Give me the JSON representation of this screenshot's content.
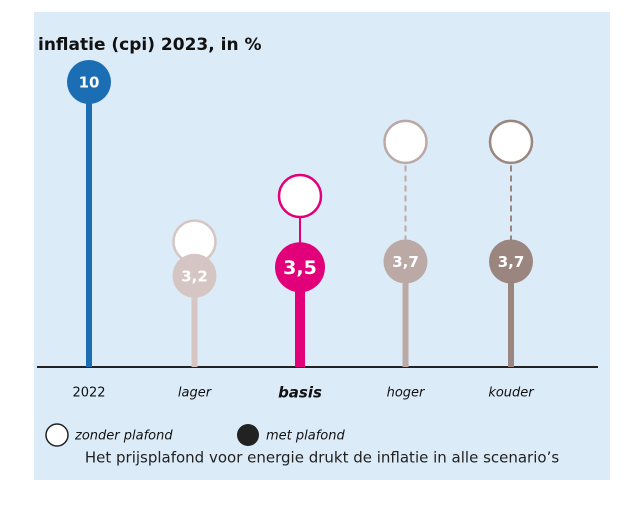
{
  "chart_data": {
    "type": "lollipop",
    "title": "inflatie (cpi) 2023, in %",
    "categories": [
      "2022",
      "lager",
      "basis",
      "hoger",
      "kouder"
    ],
    "colors": [
      "#1b6db4",
      "#d6c6c3",
      "#e2007a",
      "#bba9a5",
      "#9a857f"
    ],
    "highlight": "basis",
    "series": [
      {
        "name": "met plafond",
        "color": "#222222",
        "values": [
          10,
          3.2,
          3.5,
          3.7,
          3.7
        ],
        "value_labels": [
          "10",
          "3,2",
          "3,5",
          "3,7",
          "3,7"
        ]
      },
      {
        "name": "zonder plafond",
        "color": "#ffffff",
        "values": [
          null,
          4.4,
          6.0,
          7.9,
          7.9
        ]
      }
    ],
    "footnote": "Het prijsplafond voor energie drukt de inflatie in alle scenario’s"
  }
}
